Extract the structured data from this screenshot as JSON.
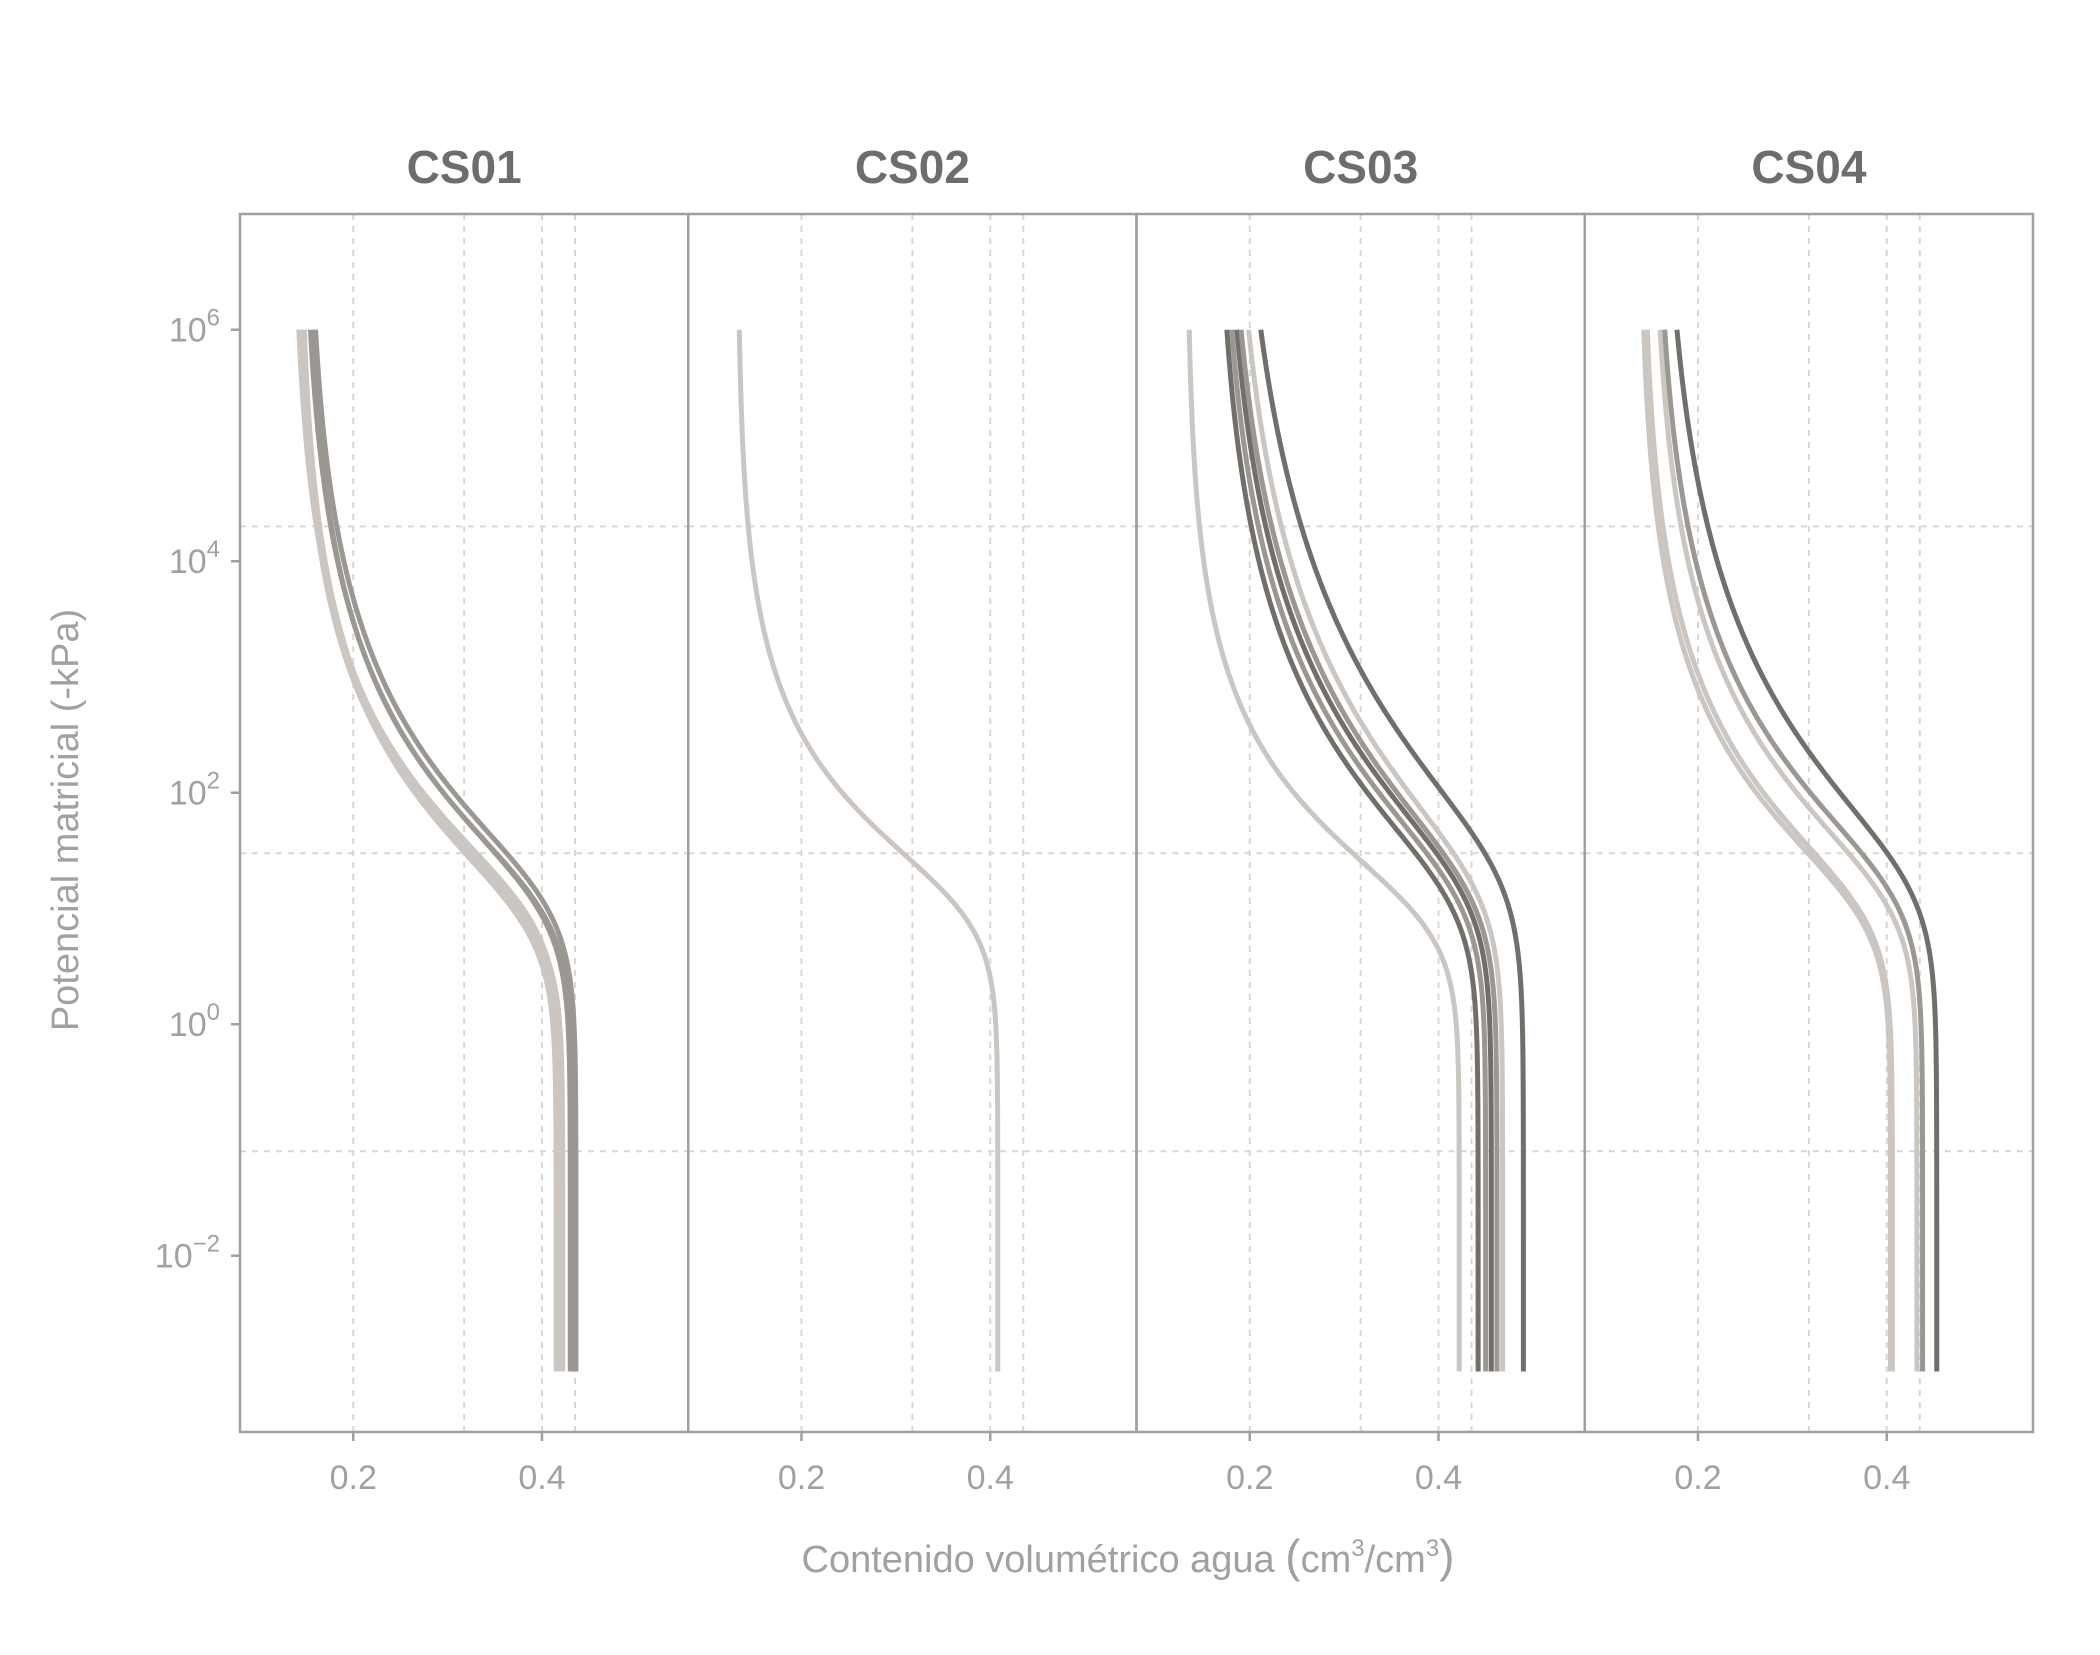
{
  "chart_data": {
    "type": "line",
    "xlabel": "Contenido volumétrico agua",
    "xlabel_unit": [
      "cm",
      "3",
      "/cm",
      "3"
    ],
    "ylabel": "Potencial matricial (-kPa)",
    "y_scale": "log10",
    "ylim": [
      0.0003,
      10000000
    ],
    "y_ticks": [
      {
        "base": "10",
        "exp": "6",
        "value": 1000000
      },
      {
        "base": "10",
        "exp": "4",
        "value": 10000
      },
      {
        "base": "10",
        "exp": "2",
        "value": 100
      },
      {
        "base": "10",
        "exp": "0",
        "value": 1
      },
      {
        "base": "10",
        "exp": "−2",
        "value": 0.01
      }
    ],
    "xlim": [
      0.08,
      0.555
    ],
    "x_ticks": [
      {
        "value": 0.2,
        "label": "0.2"
      },
      {
        "value": 0.4,
        "label": "0.4"
      }
    ],
    "x_minor_grid": [
      0.2,
      0.3175,
      0.4,
      0.435
    ],
    "y_minor_grid": [
      20000,
      30,
      0.08
    ],
    "grid": true,
    "legend": "none",
    "curve_model": "van Genuchten (h = 0.001 to 1000000 kPa)",
    "colors": {
      "light": "#cbc6c1",
      "mid": "#9b9792",
      "dark": "#726e6a",
      "frame": "#a19f9e",
      "title": "#6f6c6b",
      "tick": "#a3a1a0",
      "grid": "#d9d7d6"
    },
    "panels": [
      {
        "title": "CS01",
        "series": [
          {
            "theta_r": 0.138,
            "theta_s": 0.415,
            "alpha": 0.11,
            "n": 1.32,
            "color": "#cbc6c1"
          },
          {
            "theta_r": 0.142,
            "theta_s": 0.418,
            "alpha": 0.1,
            "n": 1.33,
            "color": "#cbc6c1"
          },
          {
            "theta_r": 0.135,
            "theta_s": 0.42,
            "alpha": 0.09,
            "n": 1.32,
            "color": "#cbc6c1"
          },
          {
            "theta_r": 0.14,
            "theta_s": 0.422,
            "alpha": 0.1,
            "n": 1.34,
            "color": "#cbc6c1"
          },
          {
            "theta_r": 0.145,
            "theta_s": 0.43,
            "alpha": 0.08,
            "n": 1.3,
            "color": "#9b9792"
          },
          {
            "theta_r": 0.148,
            "theta_s": 0.433,
            "alpha": 0.08,
            "n": 1.31,
            "color": "#9b9792"
          },
          {
            "theta_r": 0.15,
            "theta_s": 0.436,
            "alpha": 0.07,
            "n": 1.3,
            "color": "#9b9792"
          }
        ]
      },
      {
        "title": "CS02",
        "series": [
          {
            "theta_r": 0.132,
            "theta_s": 0.408,
            "alpha": 0.08,
            "n": 1.43,
            "color": "#cbc6c1"
          }
        ]
      },
      {
        "title": "CS03",
        "series": [
          {
            "theta_r": 0.133,
            "theta_s": 0.422,
            "alpha": 0.1,
            "n": 1.4,
            "color": "#cbc6c1"
          },
          {
            "theta_r": 0.162,
            "theta_s": 0.442,
            "alpha": 0.07,
            "n": 1.27,
            "color": "#726e6a"
          },
          {
            "theta_r": 0.165,
            "theta_s": 0.45,
            "alpha": 0.065,
            "n": 1.26,
            "color": "#9b9792"
          },
          {
            "theta_r": 0.168,
            "theta_s": 0.456,
            "alpha": 0.06,
            "n": 1.25,
            "color": "#726e6a"
          },
          {
            "theta_r": 0.17,
            "theta_s": 0.462,
            "alpha": 0.06,
            "n": 1.24,
            "color": "#9b9792"
          },
          {
            "theta_r": 0.175,
            "theta_s": 0.468,
            "alpha": 0.055,
            "n": 1.23,
            "color": "#cbc6c1"
          },
          {
            "theta_r": 0.178,
            "theta_s": 0.49,
            "alpha": 0.04,
            "n": 1.21,
            "color": "#726e6a"
          }
        ]
      },
      {
        "title": "CS04",
        "series": [
          {
            "theta_r": 0.137,
            "theta_s": 0.404,
            "alpha": 0.09,
            "n": 1.34,
            "color": "#cbc6c1"
          },
          {
            "theta_r": 0.14,
            "theta_s": 0.406,
            "alpha": 0.085,
            "n": 1.33,
            "color": "#cbc6c1"
          },
          {
            "theta_r": 0.15,
            "theta_s": 0.432,
            "alpha": 0.07,
            "n": 1.3,
            "color": "#cbc6c1"
          },
          {
            "theta_r": 0.153,
            "theta_s": 0.438,
            "alpha": 0.06,
            "n": 1.29,
            "color": "#9b9792"
          },
          {
            "theta_r": 0.158,
            "theta_s": 0.453,
            "alpha": 0.05,
            "n": 1.25,
            "color": "#726e6a"
          }
        ]
      }
    ]
  }
}
